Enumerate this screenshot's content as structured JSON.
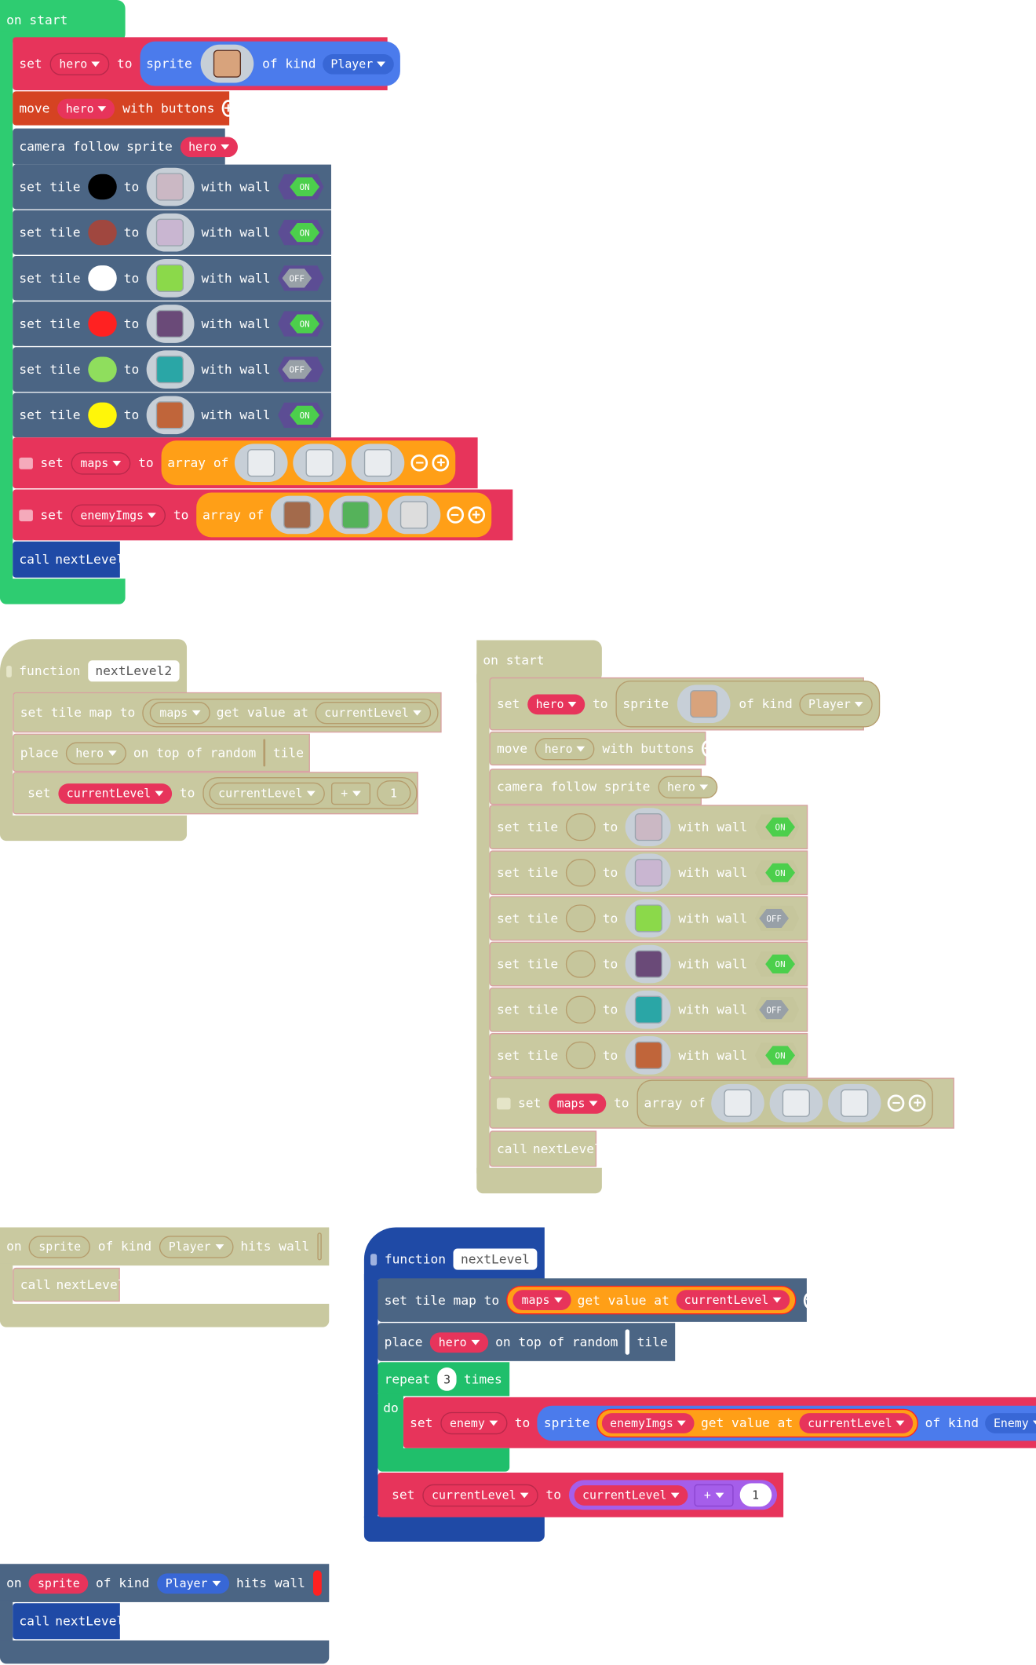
{
  "colors": {
    "events": "#2ecc71",
    "sprites": "#4b6584",
    "variables": "#e7345b",
    "arrays": "#ff9f17",
    "controller": "#d54322",
    "functions": "#1f4aa6",
    "loops": "#20bf6b",
    "math": "#a55eea",
    "sprite_kind_blue": "#4b7bec",
    "disabled": "#c9c9a0"
  },
  "common": {
    "on_start": "on start",
    "set": "set",
    "to": "to",
    "sprite": "sprite",
    "of_kind": "of kind",
    "move": "move",
    "with_buttons": "with buttons",
    "camera_follow_sprite": "camera follow sprite",
    "set_tile": "set tile",
    "with_wall": "with wall",
    "on": "on",
    "off": "OFF",
    "array_of": "array of",
    "call": "call",
    "function": "function",
    "set_tile_map_to": "set tile map to",
    "get_value_at": "get value at",
    "place": "place",
    "on_top_of_random": "on top of random",
    "tile": "tile",
    "hits_wall": "hits wall",
    "repeat": "repeat",
    "times": "times",
    "do": "do",
    "plus": "+",
    "plus_icon": "+",
    "minus_icon": "−"
  },
  "vars": {
    "hero": "hero",
    "maps": "maps",
    "enemyImgs": "enemyImgs",
    "currentLevel": "currentLevel",
    "enemy": "enemy"
  },
  "kinds": {
    "player": "Player",
    "enemy": "Enemy"
  },
  "functions": {
    "nextLevel": "nextLevel",
    "nextLevel2": "nextLevel2"
  },
  "numbers": {
    "one": "1",
    "three": "3"
  },
  "tile_colors": [
    "#000000",
    "#a0473f",
    "#ffffff",
    "#ff2121",
    "#8fde5d",
    "#fff609"
  ],
  "wall_states": [
    "ON",
    "ON",
    "OFF",
    "ON",
    "OFF",
    "ON"
  ],
  "hits_wall_color": "#ff2121"
}
